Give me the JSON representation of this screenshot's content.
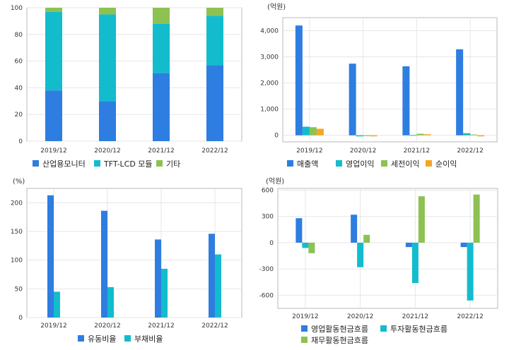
{
  "colors": {
    "blue": "#2e7de1",
    "cyan": "#12bccd",
    "green": "#8dc152",
    "orange": "#f5a623"
  },
  "chart_data": [
    {
      "type": "bar",
      "stacked": true,
      "title": "",
      "unit": "",
      "categories": [
        "2019/12",
        "2020/12",
        "2021/12",
        "2022/12"
      ],
      "ylim": [
        0,
        100
      ],
      "yticks": [
        0,
        20,
        40,
        60,
        80,
        100
      ],
      "ytick_labels": [
        "0",
        "20",
        "40",
        "60",
        "80",
        "100"
      ],
      "grid": true,
      "legend": "bottom",
      "series": [
        {
          "name": "산업용모니터",
          "color": "#2e7de1",
          "values": [
            38,
            30,
            51,
            57
          ]
        },
        {
          "name": "TFT-LCD 모듈",
          "color": "#12bccd",
          "values": [
            59,
            65,
            37,
            37
          ]
        },
        {
          "name": "기타",
          "color": "#8dc152",
          "values": [
            3,
            5,
            12,
            6
          ]
        }
      ]
    },
    {
      "type": "bar",
      "title": "",
      "unit": "(억원)",
      "categories": [
        "2019/12",
        "2020/12",
        "2021/12",
        "2022/12"
      ],
      "ylim": [
        -250,
        4500
      ],
      "yticks": [
        0,
        1000,
        2000,
        3000,
        4000
      ],
      "ytick_labels": [
        "0",
        "1,000",
        "2,000",
        "3,000",
        "4,000"
      ],
      "grid": true,
      "legend": "bottom",
      "series": [
        {
          "name": "매출액",
          "color": "#2e7de1",
          "values": [
            4200,
            2740,
            2640,
            3290
          ]
        },
        {
          "name": "영업이익",
          "color": "#12bccd",
          "values": [
            330,
            -40,
            10,
            80
          ]
        },
        {
          "name": "세전이익",
          "color": "#8dc152",
          "values": [
            310,
            -30,
            60,
            30
          ]
        },
        {
          "name": "순이익",
          "color": "#f5a623",
          "values": [
            250,
            -40,
            40,
            -40
          ]
        }
      ]
    },
    {
      "type": "bar",
      "title": "",
      "unit": "(%)",
      "categories": [
        "2019/12",
        "2020/12",
        "2021/12",
        "2022/12"
      ],
      "ylim": [
        0,
        225
      ],
      "yticks": [
        0,
        50,
        100,
        150,
        200
      ],
      "ytick_labels": [
        "0",
        "50",
        "100",
        "150",
        "200"
      ],
      "grid": true,
      "legend": "bottom",
      "series": [
        {
          "name": "유동비율",
          "color": "#2e7de1",
          "values": [
            213,
            186,
            136,
            146
          ]
        },
        {
          "name": "부채비율",
          "color": "#12bccd",
          "values": [
            45,
            53,
            85,
            110
          ]
        }
      ]
    },
    {
      "type": "bar",
      "title": "",
      "unit": "(억원)",
      "categories": [
        "2019/12",
        "2020/12",
        "2021/12",
        "2022/12"
      ],
      "ylim": [
        -750,
        620
      ],
      "yticks": [
        -600,
        -300,
        0,
        300,
        600
      ],
      "ytick_labels": [
        "-600",
        "-300",
        "0",
        "300",
        "600"
      ],
      "grid": true,
      "legend": "bottom",
      "series": [
        {
          "name": "영업활동현금흐름",
          "color": "#2e7de1",
          "values": [
            280,
            320,
            -50,
            -50
          ]
        },
        {
          "name": "투자활동현금흐름",
          "color": "#12bccd",
          "values": [
            -60,
            -280,
            -460,
            -660
          ]
        },
        {
          "name": "재무활동현금흐름",
          "color": "#8dc152",
          "values": [
            -120,
            90,
            530,
            550
          ]
        }
      ]
    }
  ]
}
